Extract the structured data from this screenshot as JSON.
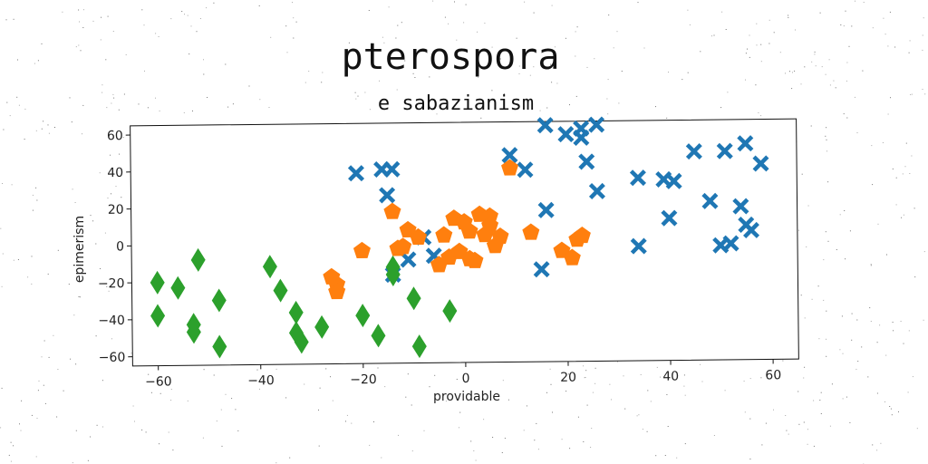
{
  "chart_data": {
    "type": "scatter",
    "title": "pterospora",
    "subtitle": "e sabazianism",
    "xlabel": "providable",
    "ylabel": "epimerism",
    "xlim": [
      -65,
      65
    ],
    "ylim": [
      -65,
      65
    ],
    "xticks": [
      "−60",
      "−40",
      "−20",
      "0",
      "20",
      "40",
      "60"
    ],
    "xtick_values": [
      -60,
      -40,
      -20,
      0,
      20,
      40,
      60
    ],
    "yticks": [
      "−60",
      "−40",
      "−20",
      "0",
      "20",
      "40",
      "60"
    ],
    "ytick_values": [
      -60,
      -40,
      -20,
      0,
      20,
      40,
      60
    ],
    "grid": false,
    "series": [
      {
        "marker": "X",
        "color": "#1f77b4",
        "points": [
          [
            16,
            63
          ],
          [
            20,
            58
          ],
          [
            23,
            61
          ],
          [
            23,
            56
          ],
          [
            26,
            63
          ],
          [
            24,
            43
          ],
          [
            9,
            47
          ],
          [
            12,
            39
          ],
          [
            -21,
            38
          ],
          [
            -16,
            40
          ],
          [
            -14,
            40
          ],
          [
            -15,
            26
          ],
          [
            26,
            27
          ],
          [
            34,
            34
          ],
          [
            39,
            33
          ],
          [
            41,
            32
          ],
          [
            45,
            48
          ],
          [
            51,
            48
          ],
          [
            55,
            52
          ],
          [
            58,
            41
          ],
          [
            48,
            21
          ],
          [
            54,
            18
          ],
          [
            40,
            12
          ],
          [
            34,
            -3
          ],
          [
            50,
            -3
          ],
          [
            52,
            -2
          ],
          [
            55,
            8
          ],
          [
            56,
            5
          ],
          [
            16,
            17
          ],
          [
            15,
            -15
          ],
          [
            -8,
            3
          ],
          [
            -11,
            -9
          ],
          [
            -14,
            -17
          ],
          [
            -6,
            -7
          ]
        ]
      },
      {
        "marker": "pentagon",
        "color": "#ff7f0e",
        "points": [
          [
            9,
            40
          ],
          [
            -14,
            17
          ],
          [
            -11,
            7
          ],
          [
            -12,
            -2
          ],
          [
            -13,
            -3
          ],
          [
            -4,
            4
          ],
          [
            -2,
            13
          ],
          [
            0,
            11
          ],
          [
            1,
            6
          ],
          [
            3,
            15
          ],
          [
            5,
            14
          ],
          [
            5,
            9
          ],
          [
            4,
            4
          ],
          [
            7,
            3
          ],
          [
            6,
            -2
          ],
          [
            -3,
            -8
          ],
          [
            -5,
            -12
          ],
          [
            -1,
            -5
          ],
          [
            1,
            -9
          ],
          [
            2,
            -10
          ],
          [
            13,
            5
          ],
          [
            19,
            -5
          ],
          [
            21,
            -9
          ],
          [
            22,
            1
          ],
          [
            23,
            3
          ],
          [
            -20,
            -4
          ],
          [
            -26,
            -18
          ],
          [
            -25,
            -22
          ],
          [
            -25,
            -26
          ],
          [
            -9,
            3
          ]
        ]
      },
      {
        "marker": "diamond",
        "color": "#2ca02c",
        "points": [
          [
            -60,
            -20
          ],
          [
            -56,
            -23
          ],
          [
            -52,
            -8
          ],
          [
            -60,
            -38
          ],
          [
            -53,
            -43
          ],
          [
            -53,
            -47
          ],
          [
            -48,
            -30
          ],
          [
            -48,
            -55
          ],
          [
            -38,
            -12
          ],
          [
            -36,
            -25
          ],
          [
            -33,
            -37
          ],
          [
            -33,
            -48
          ],
          [
            -32,
            -53
          ],
          [
            -28,
            -45
          ],
          [
            -20,
            -39
          ],
          [
            -17,
            -50
          ],
          [
            -14,
            -13
          ],
          [
            -14,
            -17
          ],
          [
            -10,
            -30
          ],
          [
            -9,
            -56
          ],
          [
            -3,
            -37
          ]
        ]
      }
    ]
  }
}
